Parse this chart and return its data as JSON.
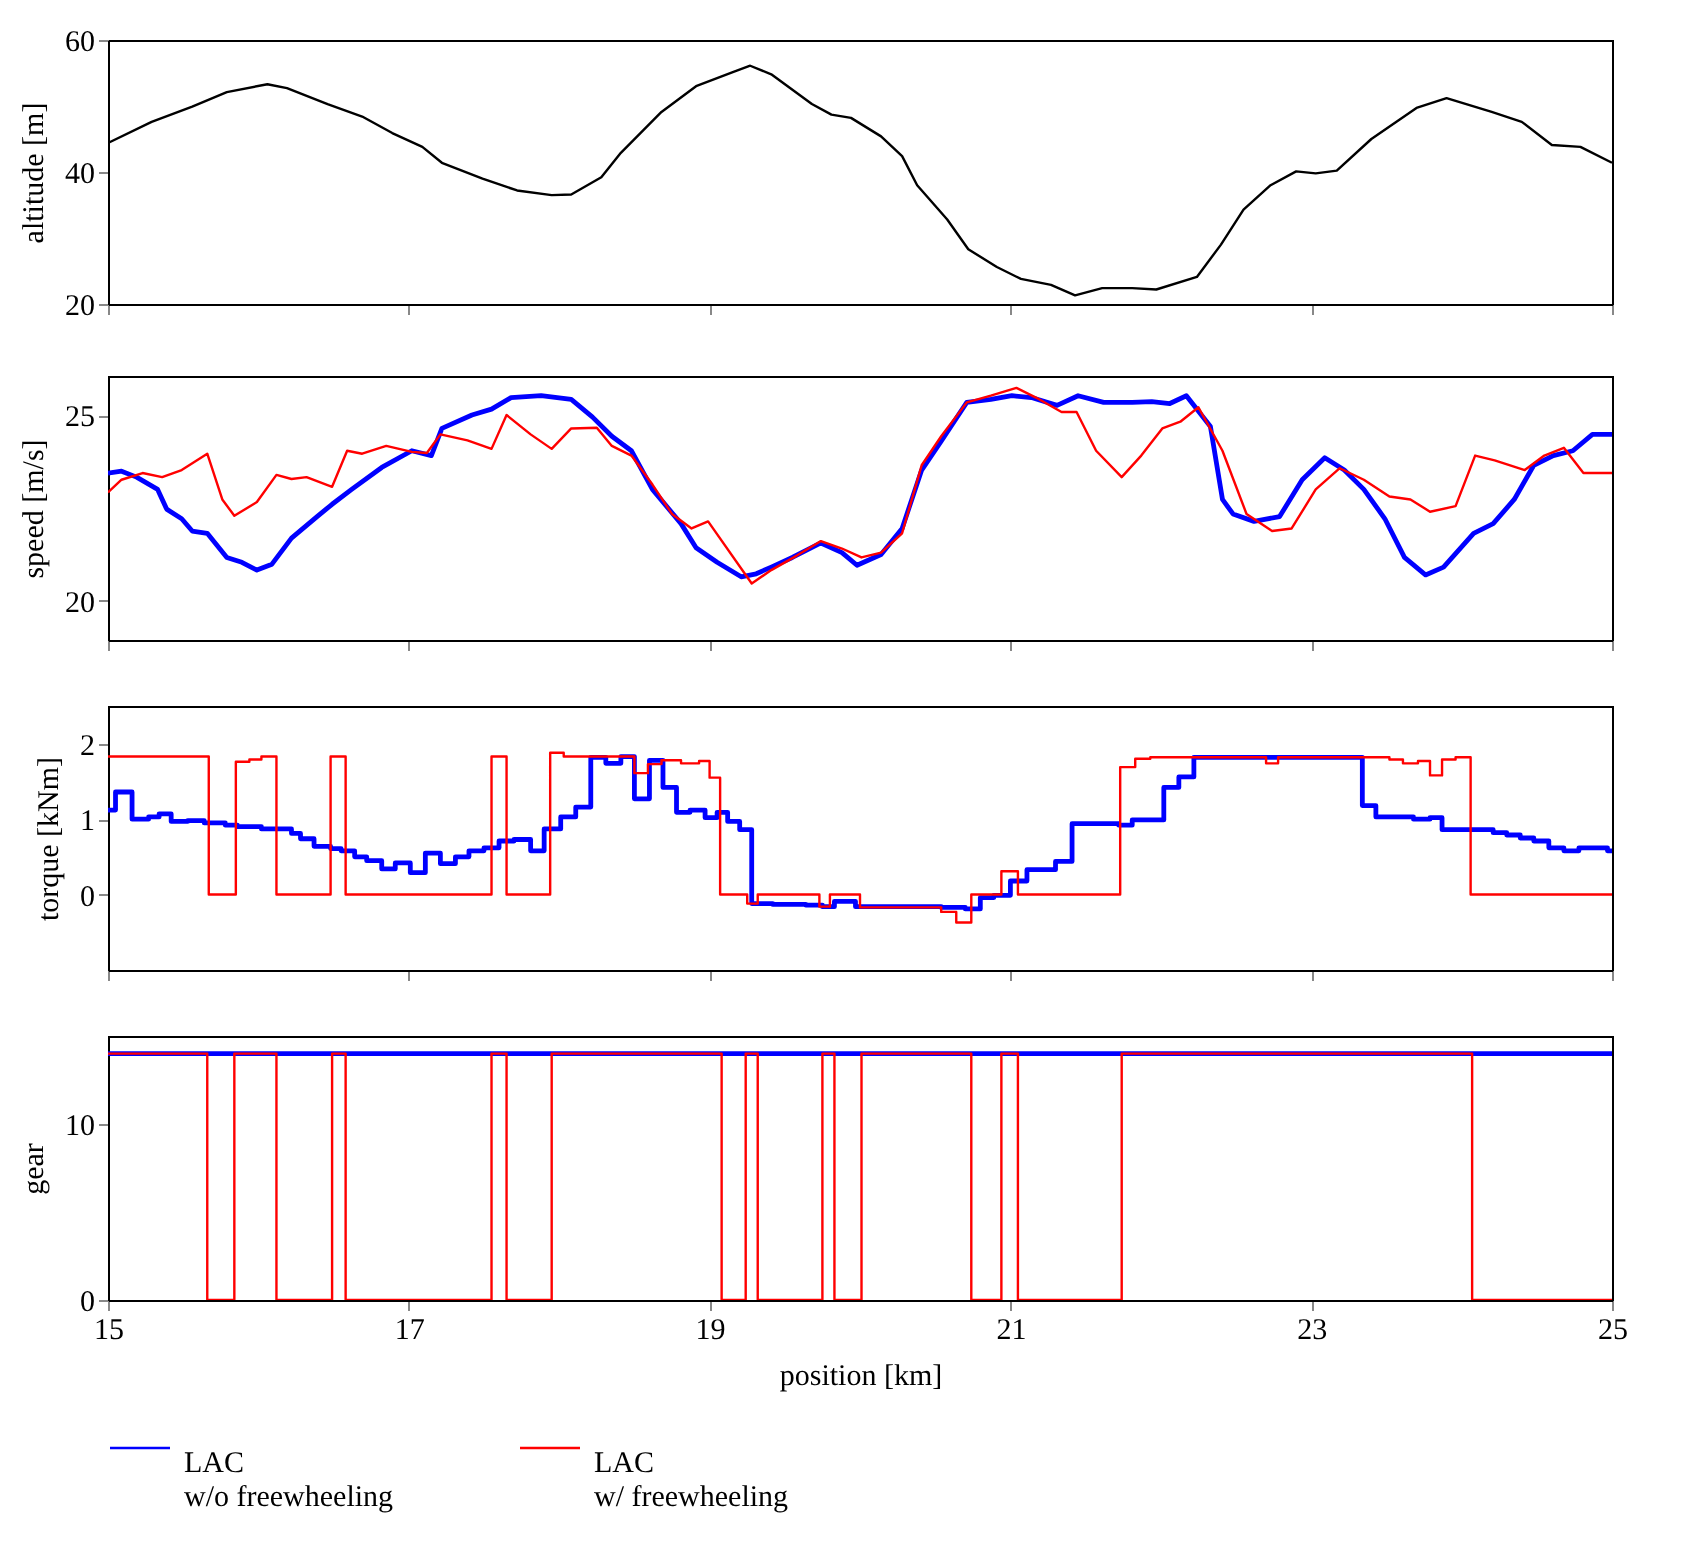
{
  "chart_data": [
    {
      "type": "line",
      "ylabel": "altitude [m]",
      "xlim": [
        15,
        25
      ],
      "xticks": [
        15,
        17,
        19,
        21,
        23,
        25
      ],
      "ylim": [
        20,
        60
      ],
      "yticks": [
        20,
        40,
        60
      ],
      "tick_labels": "y",
      "series": [
        {
          "color": "#000000",
          "x": [
            15.0,
            15.29,
            15.56,
            15.79,
            16.06,
            16.19,
            16.46,
            16.69,
            16.89,
            17.09,
            17.22,
            17.49,
            17.72,
            17.95,
            18.08,
            18.28,
            18.41,
            18.68,
            18.91,
            19.15,
            19.27,
            19.41,
            19.68,
            19.81,
            19.94,
            20.14,
            20.28,
            20.38,
            20.58,
            20.72,
            20.91,
            21.07,
            21.27,
            21.43,
            21.61,
            21.81,
            21.97,
            22.24,
            22.4,
            22.55,
            22.73,
            22.9,
            23.03,
            23.17,
            23.4,
            23.7,
            23.9,
            24.2,
            24.4,
            24.6,
            24.79,
            25.0
          ],
          "values": [
            44.4,
            47.6,
            49.9,
            52.1,
            53.3,
            52.7,
            50.3,
            48.4,
            45.9,
            43.8,
            41.4,
            39.0,
            37.2,
            36.5,
            36.6,
            39.2,
            42.9,
            49.1,
            53.0,
            55.1,
            56.1,
            54.8,
            50.3,
            48.7,
            48.2,
            45.4,
            42.4,
            38.0,
            32.8,
            28.3,
            25.6,
            23.8,
            22.9,
            21.3,
            22.4,
            22.4,
            22.2,
            24.1,
            29.0,
            34.3,
            38.0,
            40.1,
            39.8,
            40.2,
            45.0,
            49.7,
            51.2,
            49.1,
            47.6,
            44.1,
            43.8,
            41.4
          ]
        }
      ]
    },
    {
      "type": "line",
      "ylabel": "speed [m/s]",
      "xlim": [
        15,
        25
      ],
      "xticks": [
        15,
        17,
        19,
        21,
        23,
        25
      ],
      "ylim": [
        18.95,
        26.05
      ],
      "yticks": [
        20,
        25
      ],
      "tick_labels": "y",
      "series": [
        {
          "color": "#0000ff",
          "x": [
            15.0,
            15.09,
            15.19,
            15.33,
            15.39,
            15.49,
            15.56,
            15.66,
            15.79,
            15.89,
            15.99,
            16.09,
            16.22,
            16.39,
            16.49,
            16.62,
            16.82,
            17.02,
            17.15,
            17.22,
            17.42,
            17.55,
            17.68,
            17.88,
            18.08,
            18.22,
            18.35,
            18.48,
            18.62,
            18.81,
            18.91,
            19.05,
            19.21,
            19.31,
            19.41,
            19.55,
            19.74,
            19.88,
            19.98,
            20.14,
            20.28,
            20.41,
            20.54,
            20.71,
            20.87,
            21.01,
            21.14,
            21.31,
            21.45,
            21.62,
            21.81,
            21.94,
            22.06,
            22.17,
            22.33,
            22.41,
            22.48,
            22.62,
            22.79,
            22.94,
            23.09,
            23.22,
            23.35,
            23.49,
            23.62,
            23.76,
            23.88,
            24.08,
            24.21,
            24.35,
            24.48,
            24.61,
            24.74,
            24.87,
            25.0
          ],
          "values": [
            23.44,
            23.49,
            23.33,
            23.0,
            22.47,
            22.21,
            21.88,
            21.82,
            21.17,
            21.04,
            20.83,
            20.99,
            21.69,
            22.27,
            22.6,
            23.0,
            23.59,
            24.04,
            23.91,
            24.64,
            25.0,
            25.16,
            25.47,
            25.52,
            25.42,
            24.95,
            24.43,
            24.04,
            23.0,
            22.08,
            21.43,
            21.04,
            20.65,
            20.73,
            20.91,
            21.17,
            21.56,
            21.3,
            20.96,
            21.25,
            21.95,
            23.52,
            24.3,
            25.34,
            25.42,
            25.52,
            25.47,
            25.26,
            25.52,
            25.34,
            25.34,
            25.36,
            25.31,
            25.52,
            24.69,
            22.73,
            22.34,
            22.14,
            22.27,
            23.26,
            23.85,
            23.52,
            23.0,
            22.21,
            21.17,
            20.7,
            20.91,
            21.82,
            22.08,
            22.73,
            23.65,
            23.91,
            24.04,
            24.48,
            24.48
          ]
        },
        {
          "color": "#ff0000",
          "x": [
            15.0,
            15.09,
            15.23,
            15.36,
            15.49,
            15.66,
            15.76,
            15.84,
            15.99,
            16.12,
            16.22,
            16.32,
            16.49,
            16.59,
            16.69,
            16.85,
            17.02,
            17.12,
            17.21,
            17.39,
            17.55,
            17.65,
            17.81,
            17.95,
            18.08,
            18.25,
            18.35,
            18.48,
            18.62,
            18.75,
            18.88,
            18.99,
            19.28,
            19.41,
            19.58,
            19.74,
            19.88,
            20.01,
            20.14,
            20.28,
            20.41,
            20.54,
            20.71,
            20.87,
            21.04,
            21.17,
            21.34,
            21.44,
            21.57,
            21.74,
            21.87,
            22.01,
            22.13,
            22.25,
            22.41,
            22.57,
            22.74,
            22.87,
            23.03,
            23.19,
            23.35,
            23.52,
            23.66,
            23.79,
            23.96,
            24.09,
            24.22,
            24.42,
            24.55,
            24.68,
            24.81,
            25.0
          ],
          "values": [
            22.92,
            23.26,
            23.44,
            23.33,
            23.52,
            23.96,
            22.73,
            22.29,
            22.66,
            23.39,
            23.28,
            23.33,
            23.07,
            24.04,
            23.96,
            24.17,
            24.01,
            23.98,
            24.48,
            24.32,
            24.09,
            25.0,
            24.48,
            24.09,
            24.64,
            24.66,
            24.17,
            23.91,
            23.13,
            22.34,
            21.95,
            22.14,
            20.47,
            20.83,
            21.22,
            21.61,
            21.41,
            21.17,
            21.3,
            21.82,
            23.65,
            24.43,
            25.34,
            25.52,
            25.73,
            25.47,
            25.08,
            25.08,
            24.04,
            23.33,
            23.91,
            24.64,
            24.82,
            25.21,
            24.04,
            22.34,
            21.88,
            21.95,
            23.0,
            23.57,
            23.26,
            22.81,
            22.73,
            22.4,
            22.55,
            23.91,
            23.78,
            23.52,
            23.91,
            24.12,
            23.44,
            23.44
          ]
        }
      ]
    },
    {
      "type": "step",
      "ylabel": "torque [kNm]",
      "xlim": [
        15,
        25
      ],
      "xticks": [
        15,
        17,
        19,
        21,
        23,
        25
      ],
      "ylim": [
        -1,
        2.5
      ],
      "yticks": [
        0,
        1,
        2
      ],
      "tick_labels": "y",
      "series": [
        {
          "color": "#0000ff",
          "x": [
            15.0,
            15.05,
            15.16,
            15.27,
            15.34,
            15.42,
            15.53,
            15.64,
            15.78,
            15.86,
            16.02,
            16.22,
            16.28,
            16.37,
            16.48,
            16.55,
            16.64,
            16.72,
            16.82,
            16.91,
            17.01,
            17.11,
            17.21,
            17.31,
            17.4,
            17.5,
            17.6,
            17.7,
            17.81,
            17.9,
            18.01,
            18.11,
            18.21,
            18.31,
            18.41,
            18.5,
            18.6,
            18.69,
            18.78,
            18.87,
            18.97,
            19.05,
            19.12,
            19.2,
            19.28,
            19.42,
            19.64,
            19.75,
            19.83,
            19.97,
            20.54,
            20.7,
            20.8,
            20.89,
            21.0,
            21.11,
            21.3,
            21.41,
            21.72,
            21.81,
            22.02,
            22.12,
            22.22,
            23.34,
            23.43,
            23.68,
            23.79,
            23.87,
            24.21,
            24.3,
            24.39,
            24.48,
            24.58,
            24.68,
            24.78,
            24.97,
            25.0
          ],
          "values": [
            1.12,
            1.36,
            1.0,
            1.03,
            1.07,
            0.97,
            0.98,
            0.95,
            0.92,
            0.9,
            0.87,
            0.81,
            0.74,
            0.64,
            0.61,
            0.58,
            0.5,
            0.45,
            0.34,
            0.42,
            0.29,
            0.55,
            0.41,
            0.5,
            0.58,
            0.62,
            0.71,
            0.73,
            0.58,
            0.87,
            1.03,
            1.16,
            1.82,
            1.74,
            1.83,
            1.27,
            1.78,
            1.42,
            1.09,
            1.12,
            1.02,
            1.09,
            0.97,
            0.86,
            -0.12,
            -0.13,
            -0.14,
            -0.16,
            -0.09,
            -0.16,
            -0.17,
            -0.19,
            -0.04,
            -0.01,
            0.18,
            0.33,
            0.44,
            0.94,
            0.92,
            0.99,
            1.42,
            1.56,
            1.82,
            1.18,
            1.03,
            1.0,
            1.02,
            0.86,
            0.82,
            0.79,
            0.75,
            0.71,
            0.62,
            0.58,
            0.62,
            0.58,
            0.58
          ]
        },
        {
          "color": "#ff0000",
          "x": [
            15.0,
            15.67,
            15.85,
            15.94,
            16.02,
            16.12,
            16.48,
            16.58,
            17.55,
            17.65,
            17.94,
            18.03,
            18.5,
            18.59,
            18.68,
            18.81,
            18.93,
            19.0,
            19.07,
            19.25,
            19.32,
            19.73,
            19.8,
            20.0,
            20.54,
            20.64,
            20.74,
            20.94,
            21.05,
            21.73,
            21.83,
            21.93,
            22.7,
            22.78,
            23.52,
            23.61,
            23.71,
            23.79,
            23.87,
            23.96,
            24.06,
            25.0
          ],
          "values": [
            1.83,
            0,
            1.76,
            1.79,
            1.83,
            0,
            1.83,
            0,
            1.83,
            0,
            1.88,
            1.83,
            1.61,
            1.73,
            1.78,
            1.74,
            1.77,
            1.55,
            0,
            -0.12,
            0,
            -0.16,
            0,
            -0.17,
            -0.23,
            -0.37,
            0,
            0.31,
            0,
            1.69,
            1.8,
            1.82,
            1.74,
            1.82,
            1.79,
            1.74,
            1.77,
            1.58,
            1.79,
            1.82,
            0,
            0
          ]
        }
      ]
    },
    {
      "type": "step",
      "xlabel": "position [km]",
      "ylabel": "gear",
      "xlim": [
        15,
        25
      ],
      "xticks": [
        15,
        17,
        19,
        21,
        23,
        25
      ],
      "ylim": [
        0,
        15
      ],
      "yticks": [
        0,
        10
      ],
      "legend": "bottom",
      "series": [
        {
          "name": "LAC\nw/o freewheeling",
          "color": "#0000ff",
          "x": [
            15,
            25
          ],
          "values": [
            14,
            14
          ]
        },
        {
          "name": "LAC\nw/ freewheeling",
          "color": "#ff0000",
          "x": [
            15,
            15.66,
            15.84,
            16.12,
            16.49,
            16.58,
            17.55,
            17.65,
            17.95,
            19.08,
            19.24,
            19.32,
            19.75,
            19.83,
            20.01,
            20.74,
            20.94,
            21.05,
            21.74,
            24.07,
            25
          ],
          "values": [
            14,
            0,
            14,
            0,
            14,
            0,
            14,
            0,
            14,
            0,
            14,
            0,
            14,
            0,
            14,
            0,
            14,
            0,
            14,
            0,
            0
          ]
        }
      ]
    }
  ]
}
